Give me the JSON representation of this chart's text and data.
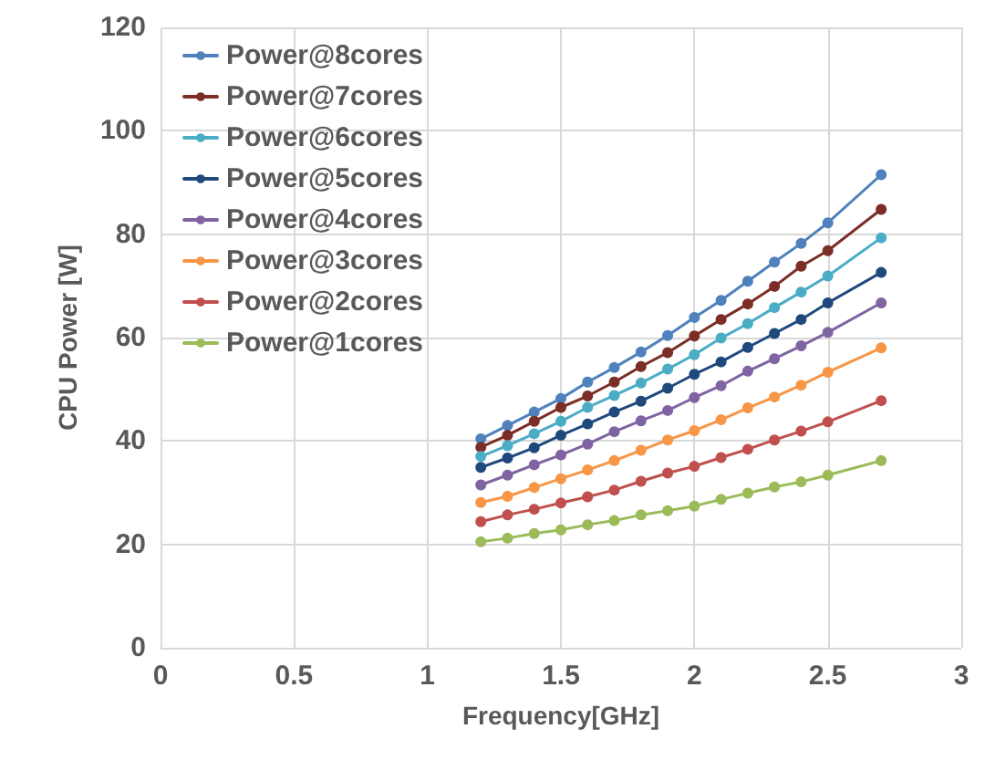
{
  "chart_data": {
    "type": "line",
    "xlabel": "Frequency[GHz]",
    "ylabel": "CPU Power [W]",
    "x": [
      1.2,
      1.3,
      1.4,
      1.5,
      1.6,
      1.7,
      1.8,
      1.9,
      2.0,
      2.1,
      2.2,
      2.3,
      2.4,
      2.5,
      2.7
    ],
    "xlim": [
      0,
      3
    ],
    "xticks": [
      0,
      0.5,
      1,
      1.5,
      2,
      2.5,
      3
    ],
    "ylim": [
      0,
      120
    ],
    "yticks": [
      0,
      20,
      40,
      60,
      80,
      100,
      120
    ],
    "grid": true,
    "legend": "top left",
    "marker": "circle",
    "line_style": "solid",
    "series": [
      {
        "name": "Power@8cores",
        "color": "#4f81bd",
        "values": [
          40.4,
          43.0,
          45.6,
          48.2,
          51.4,
          54.2,
          57.2,
          60.4,
          63.9,
          67.2,
          70.9,
          74.6,
          78.2,
          82.2,
          91.5
        ]
      },
      {
        "name": "Power@7cores",
        "color": "#7b2d26",
        "values": [
          38.8,
          41.1,
          43.8,
          46.5,
          48.7,
          51.4,
          54.4,
          57.1,
          60.3,
          63.5,
          66.5,
          69.9,
          73.8,
          76.8,
          84.8
        ]
      },
      {
        "name": "Power@6cores",
        "color": "#4bacc6",
        "values": [
          37.0,
          39.1,
          41.4,
          43.8,
          46.5,
          48.8,
          51.2,
          53.9,
          56.7,
          59.9,
          62.7,
          65.8,
          68.8,
          71.9,
          79.3
        ]
      },
      {
        "name": "Power@5cores",
        "color": "#1f497d",
        "values": [
          34.9,
          36.7,
          38.7,
          41.1,
          43.3,
          45.6,
          47.7,
          50.2,
          52.9,
          55.3,
          58.1,
          60.8,
          63.5,
          66.7,
          72.6
        ]
      },
      {
        "name": "Power@4cores",
        "color": "#8064a2",
        "values": [
          31.5,
          33.4,
          35.4,
          37.3,
          39.4,
          41.8,
          43.9,
          45.9,
          48.4,
          50.7,
          53.5,
          55.9,
          58.4,
          61.0,
          66.7
        ]
      },
      {
        "name": "Power@3cores",
        "color": "#f79646",
        "values": [
          28.1,
          29.3,
          31.0,
          32.7,
          34.4,
          36.2,
          38.2,
          40.2,
          42.0,
          44.1,
          46.4,
          48.5,
          50.8,
          53.3,
          58.0
        ]
      },
      {
        "name": "Power@2cores",
        "color": "#c0504d",
        "values": [
          24.4,
          25.7,
          26.8,
          28.0,
          29.2,
          30.5,
          32.2,
          33.8,
          35.1,
          36.8,
          38.4,
          40.2,
          41.9,
          43.7,
          47.8
        ]
      },
      {
        "name": "Power@1cores",
        "color": "#9bbb59",
        "values": [
          20.5,
          21.2,
          22.1,
          22.8,
          23.8,
          24.6,
          25.7,
          26.5,
          27.4,
          28.7,
          29.9,
          31.1,
          32.1,
          33.4,
          36.2
        ]
      }
    ]
  }
}
